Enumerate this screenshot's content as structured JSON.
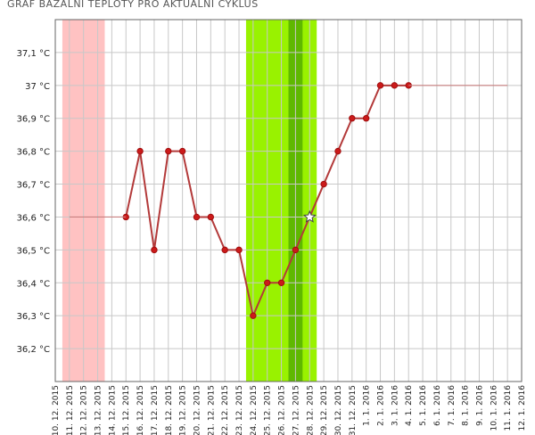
{
  "chart_data": {
    "type": "line",
    "title": "GRAF BAZÁLNÍ TEPLOTY PRO AKTUÁLNÍ CYKLUS",
    "categories": [
      "10. 12. 2015",
      "11. 12. 2015",
      "12. 12. 2015",
      "13. 12. 2015",
      "14. 12. 2015",
      "15. 12. 2015",
      "16. 12. 2015",
      "17. 12. 2015",
      "18. 12. 2015",
      "19. 12. 2015",
      "20. 12. 2015",
      "21. 12. 2015",
      "22. 12. 2015",
      "23. 12. 2015",
      "24. 12. 2015",
      "25. 12. 2015",
      "26. 12. 2015",
      "27. 12. 2015",
      "28. 12. 2015",
      "29. 12. 2015",
      "30. 12. 2015",
      "31. 12. 2015",
      "1. 1. 2016",
      "2. 1. 2016",
      "3. 1. 2016",
      "4. 1. 2016",
      "5. 1. 2016",
      "6. 1. 2016",
      "7. 1. 2016",
      "8. 1. 2016",
      "9. 1. 2016",
      "10. 1. 2016",
      "11. 1. 2016",
      "12. 1. 2016"
    ],
    "series": [
      {
        "color": "#b33a3a",
        "markers": true,
        "highlight": "28. 12. 2015",
        "values": [
          null,
          null,
          null,
          null,
          null,
          36.6,
          36.8,
          36.5,
          36.8,
          36.8,
          36.6,
          36.6,
          36.5,
          36.5,
          36.3,
          36.4,
          36.4,
          36.5,
          36.6,
          36.7,
          36.8,
          36.9,
          36.9,
          37.0,
          37.0,
          37.0,
          null,
          null,
          null,
          null,
          null,
          null,
          null,
          null
        ]
      },
      {
        "color": "#c98080",
        "markers": false,
        "values": [
          null,
          36.6,
          36.6,
          36.6,
          36.6,
          36.6,
          null,
          null,
          null,
          null,
          null,
          null,
          null,
          null,
          null,
          null,
          null,
          null,
          null,
          null,
          null,
          null,
          null,
          null,
          null,
          37.0,
          37.0,
          37.0,
          37.0,
          37.0,
          37.0,
          37.0,
          37.0,
          null
        ]
      }
    ],
    "bands": [
      {
        "from": "11. 12. 2015",
        "to": "13. 12. 2015",
        "color": "#ffc2c2"
      },
      {
        "from": "24. 12. 2015",
        "to": "28. 12. 2015",
        "color": "#99f200"
      },
      {
        "from": "27. 12. 2015",
        "to": "27. 12. 2015",
        "color": "#5fb800"
      }
    ],
    "ylim": [
      36.1,
      37.2
    ],
    "yticks": [
      {
        "value": 36.2,
        "label": "36,2 °C"
      },
      {
        "value": 36.3,
        "label": "36,3 °C"
      },
      {
        "value": 36.4,
        "label": "36,4 °C"
      },
      {
        "value": 36.5,
        "label": "36,5 °C"
      },
      {
        "value": 36.6,
        "label": "36,6 °C"
      },
      {
        "value": 36.7,
        "label": "36,7 °C"
      },
      {
        "value": 36.8,
        "label": "36,8 °C"
      },
      {
        "value": 36.9,
        "label": "36,9 °C"
      },
      {
        "value": 37.0,
        "label": "37 °C"
      },
      {
        "value": 37.1,
        "label": "37,1 °C"
      }
    ],
    "grid": true
  }
}
